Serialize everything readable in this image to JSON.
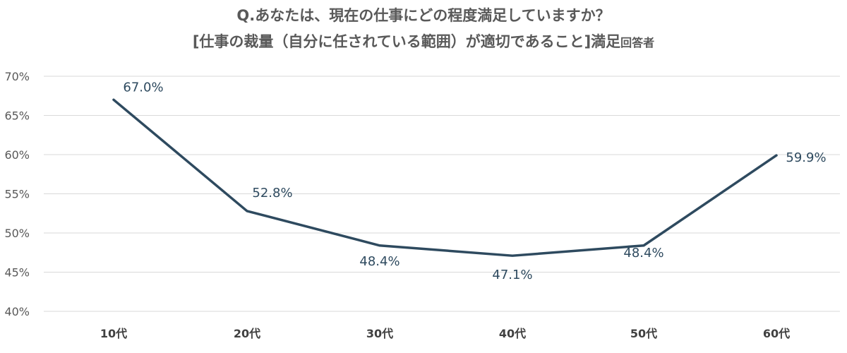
{
  "chart_data": {
    "type": "line",
    "title_line1": "Q.あなたは、現在の仕事にどの程度満足していますか？",
    "title_line2_main": "[仕事の裁量（自分に任されている範囲）が適切であること]満足",
    "title_line2_small": "回答者",
    "categories": [
      "10代",
      "20代",
      "30代",
      "40代",
      "50代",
      "60代"
    ],
    "series": [
      {
        "values": [
          67.0,
          52.8,
          48.4,
          47.1,
          48.4,
          59.9
        ],
        "labels": [
          "67.0%",
          "52.8%",
          "48.4%",
          "47.1%",
          "48.4%",
          "59.9%"
        ]
      }
    ],
    "ylim": [
      40,
      70
    ],
    "yticks": [
      40,
      45,
      50,
      55,
      60,
      65,
      70
    ],
    "ytick_labels": [
      "40%",
      "45%",
      "50%",
      "55%",
      "60%",
      "65%",
      "70%"
    ],
    "xlabel": "",
    "ylabel": "",
    "grid": "horizontal",
    "legend": "none",
    "line_color": "#2e4a5f",
    "grid_color": "#d9d9d9"
  }
}
